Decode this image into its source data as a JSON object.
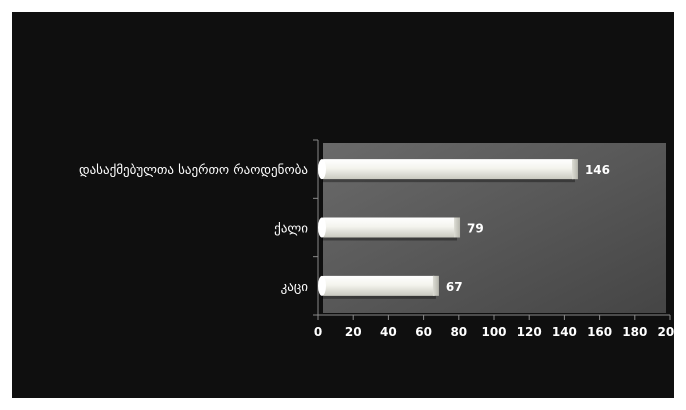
{
  "chart_data": {
    "type": "bar",
    "orientation": "horizontal",
    "categories": [
      "დასაქმებულთა საერთო რაოდენობა",
      "ქალი",
      "კაცი"
    ],
    "values": [
      146,
      79,
      67
    ],
    "data_labels": [
      "146",
      "79",
      "67"
    ],
    "title": "",
    "xlabel": "",
    "ylabel": "",
    "xlim": [
      0,
      200
    ],
    "x_ticks": [
      "0",
      "20",
      "40",
      "60",
      "80",
      "100",
      "120",
      "140",
      "160",
      "180",
      "200"
    ],
    "grid": false,
    "legend": "none",
    "colors": {
      "background": "#0f0f0f",
      "plot_area": "#5a5a5a",
      "bar": "#f2f2ec",
      "text": "#ffffff",
      "axis": "#8a8a8a"
    }
  }
}
